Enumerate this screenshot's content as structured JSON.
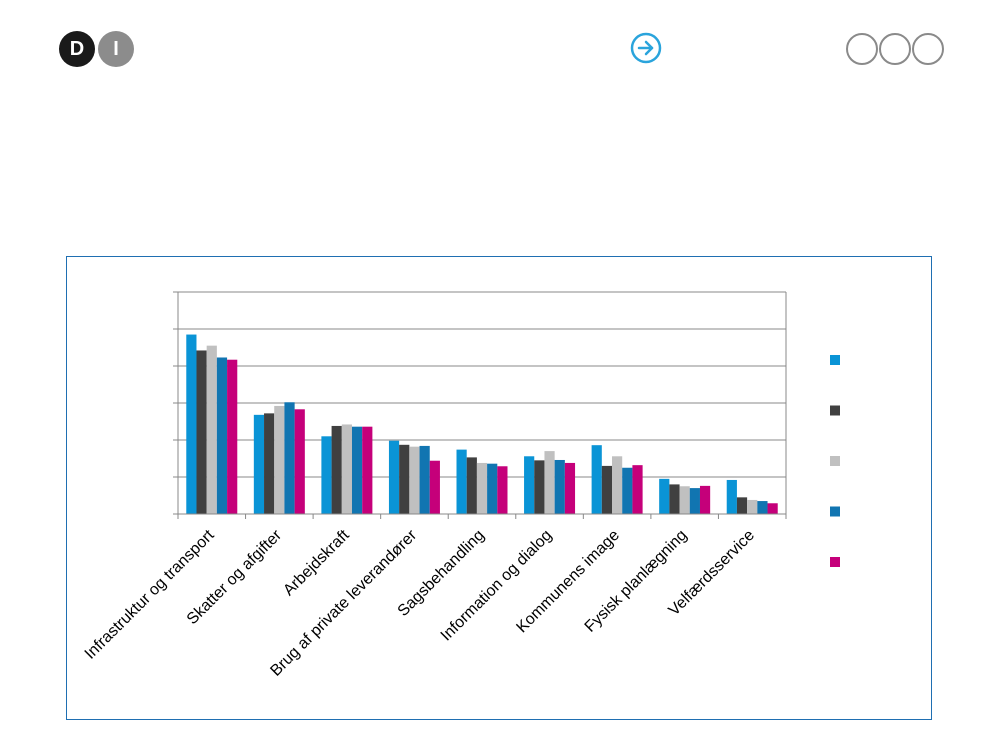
{
  "header": {
    "logo": {
      "d_letter": "D",
      "i_letter": "I"
    },
    "next_icon": "arrow-right-circle-icon",
    "nav_dots_count_icon": "circle-outline-icon"
  },
  "chart_data": {
    "type": "bar",
    "categories": [
      "Infrastruktur og transport",
      "Skatter og afgifter",
      "Arbejdskraft",
      "Brug af private leverandører",
      "Sagsbehandling",
      "Information og dialog",
      "Kommunens image",
      "Fysisk planlægning",
      "Velfærdsservice"
    ],
    "series": [
      {
        "values": [
          4.85,
          2.68,
          2.1,
          1.98,
          1.74,
          1.56,
          1.86,
          0.95,
          0.92
        ],
        "color": "#0a94d6"
      },
      {
        "values": [
          4.42,
          2.72,
          2.38,
          1.87,
          1.53,
          1.45,
          1.3,
          0.8,
          0.45
        ],
        "color": "#404040"
      },
      {
        "values": [
          4.55,
          2.92,
          2.42,
          1.82,
          1.38,
          1.7,
          1.56,
          0.75,
          0.38
        ],
        "color": "#c0c0c0"
      },
      {
        "values": [
          4.23,
          3.02,
          2.36,
          1.84,
          1.36,
          1.46,
          1.25,
          0.7,
          0.35
        ],
        "color": "#1175b1"
      },
      {
        "values": [
          4.17,
          2.83,
          2.36,
          1.44,
          1.29,
          1.38,
          1.32,
          0.76,
          0.29
        ],
        "color": "#c5007a"
      }
    ],
    "ylim": [
      0,
      6
    ],
    "yticks": [
      0,
      1,
      2,
      3,
      4,
      5,
      6
    ],
    "grid": true,
    "legend_position": "right",
    "title": "",
    "xlabel": "",
    "ylabel": ""
  }
}
